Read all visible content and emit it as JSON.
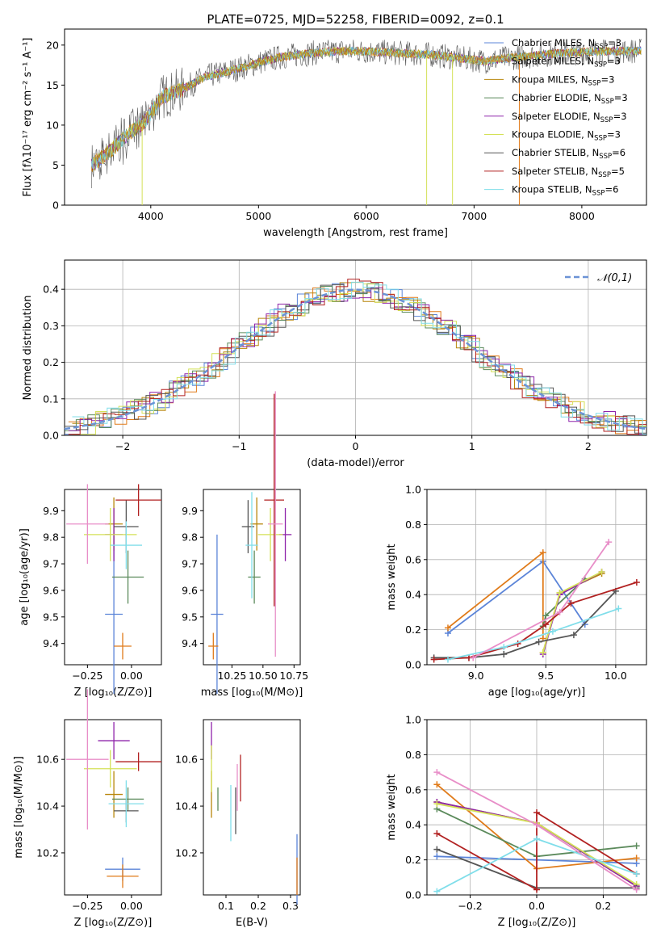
{
  "colors": {
    "blue": "#5b84d8",
    "orange": "#e07b1a",
    "olive": "#b8860b",
    "green": "#5b8a5b",
    "purple": "#8e24aa",
    "yellow": "#d4e157",
    "gray": "#555555",
    "red": "#b22222",
    "cyan": "#80deea",
    "pink": "#e88ec8",
    "dash": "#6b93d6"
  },
  "chart_data": [
    {
      "type": "line",
      "title": "PLATE=0725, MJD=52258, FIBERID=0092, z=0.1",
      "xlabel": "wavelength [Angstrom, rest frame]",
      "ylabel": "Flux [fλ10⁻¹⁷ erg cm⁻² s⁻¹ A⁻¹]",
      "xlim": [
        3200,
        8600
      ],
      "ylim": [
        0,
        22
      ],
      "xticks": [
        "4000",
        "5000",
        "6000",
        "7000",
        "8000"
      ],
      "yticks": [
        "0",
        "5",
        "10",
        "15",
        "20"
      ],
      "legend_position": "upper right",
      "series": [
        {
          "name": "Chabrier MILES, N",
          "sub": "SSP",
          "suffix": "=3",
          "color": "blue"
        },
        {
          "name": "Salpeter MILES, N",
          "sub": "SSP",
          "suffix": "=3",
          "color": "orange"
        },
        {
          "name": "Kroupa MILES, N",
          "sub": "SSP",
          "suffix": "=3",
          "color": "olive"
        },
        {
          "name": "Chabrier ELODIE, N",
          "sub": "SSP",
          "suffix": "=3",
          "color": "green"
        },
        {
          "name": "Salpeter ELODIE, N",
          "sub": "SSP",
          "suffix": "=3",
          "color": "purple"
        },
        {
          "name": "Kroupa ELODIE, N",
          "sub": "SSP",
          "suffix": "=3",
          "color": "yellow"
        },
        {
          "name": "Chabrier STELIB, N",
          "sub": "SSP",
          "suffix": "=6",
          "color": "gray"
        },
        {
          "name": "Salpeter STELIB, N",
          "sub": "SSP",
          "suffix": "=5",
          "color": "red"
        },
        {
          "name": "Kroupa STELIB, N",
          "sub": "SSP",
          "suffix": "=6",
          "color": "cyan"
        }
      ],
      "continuum": [
        [
          3450,
          5.0
        ],
        [
          3600,
          6.5
        ],
        [
          3800,
          9.0
        ],
        [
          3950,
          10.5
        ],
        [
          4100,
          13.5
        ],
        [
          4300,
          14.5
        ],
        [
          4500,
          16.0
        ],
        [
          4800,
          17.0
        ],
        [
          5000,
          17.8
        ],
        [
          5200,
          18.5
        ],
        [
          5500,
          19.0
        ],
        [
          5800,
          19.3
        ],
        [
          6000,
          19.2
        ],
        [
          6300,
          19.0
        ],
        [
          6600,
          18.8
        ],
        [
          6900,
          18.3
        ],
        [
          7100,
          18.0
        ],
        [
          7400,
          18.5
        ],
        [
          7800,
          19.0
        ],
        [
          8200,
          19.2
        ],
        [
          8550,
          19.3
        ]
      ]
    },
    {
      "type": "histogram",
      "xlabel": "(data-model)/error",
      "ylabel": "Normed distribution",
      "xlim": [
        -2.5,
        2.5
      ],
      "ylim": [
        0,
        0.48
      ],
      "xticks": [
        "−2",
        "−1",
        "0",
        "1",
        "2"
      ],
      "yticks": [
        "0.0",
        "0.1",
        "0.2",
        "0.3",
        "0.4"
      ],
      "reference_label": "𝒩(0,1)",
      "series_colors": [
        "blue",
        "orange",
        "olive",
        "green",
        "purple",
        "yellow",
        "gray",
        "red",
        "cyan"
      ]
    },
    {
      "type": "scatter",
      "xlabel": "Z [log₁₀(Z/Z⊙)]",
      "ylabel": "age  [log₁₀(age/yr)]",
      "xlim": [
        -0.38,
        0.17
      ],
      "ylim": [
        9.32,
        9.98
      ],
      "xticks": [
        "−0.25",
        "0.00"
      ],
      "yticks": [
        "9.4",
        "9.5",
        "9.6",
        "9.7",
        "9.8",
        "9.9"
      ],
      "points": [
        {
          "x": -0.1,
          "y": 9.51,
          "xerr": 0.05,
          "yerr": 0.3,
          "color": "blue"
        },
        {
          "x": -0.05,
          "y": 9.39,
          "xerr": 0.05,
          "yerr": 0.05,
          "color": "orange"
        },
        {
          "x": -0.1,
          "y": 9.85,
          "xerr": 0.05,
          "yerr": 0.1,
          "color": "olive"
        },
        {
          "x": -0.02,
          "y": 9.65,
          "xerr": 0.09,
          "yerr": 0.1,
          "color": "green"
        },
        {
          "x": -0.1,
          "y": 9.81,
          "xerr": 0.05,
          "yerr": 0.1,
          "color": "purple"
        },
        {
          "x": -0.12,
          "y": 9.81,
          "xerr": 0.15,
          "yerr": 0.1,
          "color": "yellow"
        },
        {
          "x": -0.03,
          "y": 9.84,
          "xerr": 0.07,
          "yerr": 0.1,
          "color": "gray"
        },
        {
          "x": 0.04,
          "y": 9.94,
          "xerr": 0.13,
          "yerr": 0.06,
          "color": "red"
        },
        {
          "x": -0.03,
          "y": 9.77,
          "xerr": 0.09,
          "yerr": 0.09,
          "color": "cyan"
        },
        {
          "x": -0.25,
          "y": 9.85,
          "xerr": 0.12,
          "yerr": 0.15,
          "color": "pink"
        }
      ]
    },
    {
      "type": "scatter",
      "xlabel": "mass [log₁₀(M/M⊙)]",
      "ylabel": "",
      "xlim": [
        10.02,
        10.8
      ],
      "ylim": [
        9.32,
        9.98
      ],
      "xticks": [
        "10.25",
        "10.50",
        "10.75"
      ],
      "yticks": [
        "9.4",
        "9.5",
        "9.6",
        "9.7",
        "9.8",
        "9.9"
      ],
      "points": [
        {
          "x": 10.13,
          "y": 9.51,
          "xerr": 0.05,
          "yerr": 0.3,
          "color": "blue"
        },
        {
          "x": 10.1,
          "y": 9.39,
          "xerr": 0.04,
          "yerr": 0.05,
          "color": "orange"
        },
        {
          "x": 10.45,
          "y": 9.85,
          "xerr": 0.05,
          "yerr": 0.1,
          "color": "olive"
        },
        {
          "x": 10.43,
          "y": 9.65,
          "xerr": 0.05,
          "yerr": 0.1,
          "color": "green"
        },
        {
          "x": 10.68,
          "y": 9.81,
          "xerr": 0.05,
          "yerr": 0.1,
          "color": "purple"
        },
        {
          "x": 10.56,
          "y": 9.81,
          "xerr": 0.1,
          "yerr": 0.1,
          "color": "yellow"
        },
        {
          "x": 10.38,
          "y": 9.84,
          "xerr": 0.05,
          "yerr": 0.1,
          "color": "gray"
        },
        {
          "x": 10.59,
          "y": 9.94,
          "xerr": 0.08,
          "yerr": 0.4,
          "color": "red"
        },
        {
          "x": 10.41,
          "y": 9.77,
          "xerr": 0.05,
          "yerr": 0.2,
          "color": "cyan"
        },
        {
          "x": 10.6,
          "y": 9.85,
          "xerr": 0.06,
          "yerr": 0.5,
          "color": "pink"
        }
      ]
    },
    {
      "type": "line",
      "xlabel": "age  [log₁₀(age/yr)]",
      "ylabel": "mass weight",
      "xlim": [
        8.65,
        10.22
      ],
      "ylim": [
        0,
        1
      ],
      "xticks": [
        "9.0",
        "9.5",
        "10.0"
      ],
      "yticks": [
        "0.0",
        "0.2",
        "0.4",
        "0.6",
        "0.8",
        "1.0"
      ],
      "series": [
        {
          "color": "blue",
          "x": [
            8.8,
            9.48,
            9.78
          ],
          "y": [
            0.18,
            0.59,
            0.23
          ]
        },
        {
          "color": "orange",
          "x": [
            8.8,
            9.48,
            9.48
          ],
          "y": [
            0.21,
            0.64,
            0.15
          ]
        },
        {
          "color": "olive",
          "x": [
            9.48,
            9.6,
            9.9
          ],
          "y": [
            0.07,
            0.41,
            0.52
          ]
        },
        {
          "color": "green",
          "x": [
            9.48,
            9.5,
            9.78
          ],
          "y": [
            0.22,
            0.28,
            0.49
          ]
        },
        {
          "color": "purple",
          "x": [
            9.48,
            9.6,
            9.9
          ],
          "y": [
            0.06,
            0.4,
            0.53
          ]
        },
        {
          "color": "yellow",
          "x": [
            9.48,
            9.6,
            9.9
          ],
          "y": [
            0.07,
            0.41,
            0.53
          ]
        },
        {
          "color": "gray",
          "x": [
            8.7,
            8.95,
            9.2,
            9.45,
            9.7,
            10.0
          ],
          "y": [
            0.04,
            0.04,
            0.06,
            0.13,
            0.17,
            0.42
          ]
        },
        {
          "color": "red",
          "x": [
            8.7,
            8.95,
            9.3,
            9.5,
            9.68,
            10.15
          ],
          "y": [
            0.03,
            0.04,
            0.12,
            0.23,
            0.35,
            0.47
          ]
        },
        {
          "color": "cyan",
          "x": [
            8.8,
            9.2,
            9.55,
            10.02
          ],
          "y": [
            0.03,
            0.1,
            0.19,
            0.32
          ]
        },
        {
          "color": "pink",
          "x": [
            8.98,
            9.6,
            9.95
          ],
          "y": [
            0.04,
            0.3,
            0.7
          ]
        }
      ]
    },
    {
      "type": "scatter",
      "xlabel": "Z [log₁₀(Z/Z⊙)]",
      "ylabel": "mass [log₁₀(M/M⊙)]",
      "xlim": [
        -0.38,
        0.17
      ],
      "ylim": [
        10.02,
        10.77
      ],
      "xticks": [
        "−0.25",
        "0.00"
      ],
      "yticks": [
        "10.2",
        "10.4",
        "10.6"
      ],
      "points": [
        {
          "x": -0.05,
          "y": 10.13,
          "xerr": 0.1,
          "yerr": 0.05,
          "color": "blue"
        },
        {
          "x": -0.05,
          "y": 10.1,
          "xerr": 0.09,
          "yerr": 0.05,
          "color": "orange"
        },
        {
          "x": -0.1,
          "y": 10.45,
          "xerr": 0.05,
          "yerr": 0.1,
          "color": "olive"
        },
        {
          "x": -0.02,
          "y": 10.43,
          "xerr": 0.09,
          "yerr": 0.05,
          "color": "green"
        },
        {
          "x": -0.1,
          "y": 10.68,
          "xerr": 0.09,
          "yerr": 0.08,
          "color": "purple"
        },
        {
          "x": -0.12,
          "y": 10.56,
          "xerr": 0.15,
          "yerr": 0.08,
          "color": "yellow"
        },
        {
          "x": -0.03,
          "y": 10.38,
          "xerr": 0.07,
          "yerr": 0.05,
          "color": "gray"
        },
        {
          "x": 0.04,
          "y": 10.59,
          "xerr": 0.13,
          "yerr": 0.04,
          "color": "red"
        },
        {
          "x": -0.03,
          "y": 10.41,
          "xerr": 0.1,
          "yerr": 0.1,
          "color": "cyan"
        },
        {
          "x": -0.25,
          "y": 10.6,
          "xerr": 0.12,
          "yerr": 0.3,
          "color": "pink"
        }
      ]
    },
    {
      "type": "scatter",
      "xlabel": "E(B-V)",
      "ylabel": "",
      "xlim": [
        0.03,
        0.33
      ],
      "ylim": [
        10.02,
        10.77
      ],
      "xticks": [
        "0.1",
        "0.2",
        "0.3"
      ],
      "yticks": [
        "10.2",
        "10.4",
        "10.6"
      ],
      "points": [
        {
          "x": 0.32,
          "y": 10.13,
          "yerr": 0.15,
          "color": "blue"
        },
        {
          "x": 0.32,
          "y": 10.1,
          "yerr": 0.08,
          "color": "orange"
        },
        {
          "x": 0.055,
          "y": 10.45,
          "yerr": 0.1,
          "color": "olive"
        },
        {
          "x": 0.075,
          "y": 10.43,
          "yerr": 0.05,
          "color": "green"
        },
        {
          "x": 0.055,
          "y": 10.68,
          "yerr": 0.08,
          "color": "purple"
        },
        {
          "x": 0.055,
          "y": 10.56,
          "yerr": 0.1,
          "color": "yellow"
        },
        {
          "x": 0.13,
          "y": 10.38,
          "yerr": 0.1,
          "color": "gray"
        },
        {
          "x": 0.145,
          "y": 10.52,
          "yerr": 0.1,
          "color": "red"
        },
        {
          "x": 0.115,
          "y": 10.37,
          "yerr": 0.12,
          "color": "cyan"
        },
        {
          "x": 0.135,
          "y": 10.48,
          "yerr": 0.1,
          "color": "pink"
        }
      ]
    },
    {
      "type": "line",
      "xlabel": "Z [log₁₀(Z/Z⊙)]",
      "ylabel": "mass weight",
      "xlim": [
        -0.33,
        0.33
      ],
      "ylim": [
        0,
        1
      ],
      "xticks": [
        "−0.2",
        "0.0",
        "0.2"
      ],
      "yticks": [
        "0.0",
        "0.2",
        "0.4",
        "0.6",
        "0.8",
        "1.0"
      ],
      "series": [
        {
          "color": "blue",
          "x": [
            -0.3,
            0.0,
            0.3
          ],
          "y": [
            0.22,
            0.2,
            0.18
          ]
        },
        {
          "color": "orange",
          "x": [
            -0.3,
            0.0,
            0.3
          ],
          "y": [
            0.63,
            0.15,
            0.21
          ]
        },
        {
          "color": "olive",
          "x": [
            -0.3,
            0.0,
            0.3
          ],
          "y": [
            0.53,
            0.41,
            0.05
          ]
        },
        {
          "color": "green",
          "x": [
            -0.3,
            0.0,
            0.3
          ],
          "y": [
            0.49,
            0.22,
            0.28
          ]
        },
        {
          "color": "purple",
          "x": [
            -0.3,
            0.0,
            0.3
          ],
          "y": [
            0.53,
            0.41,
            0.05
          ]
        },
        {
          "color": "yellow",
          "x": [
            -0.3,
            0.0,
            0.3
          ],
          "y": [
            0.52,
            0.41,
            0.06
          ]
        },
        {
          "color": "gray",
          "x": [
            -0.3,
            0.0,
            0.3
          ],
          "y": [
            0.26,
            0.04,
            0.04
          ]
        },
        {
          "color": "red",
          "x": [
            -0.3,
            0.0,
            0.0,
            0.3
          ],
          "y": [
            0.35,
            0.03,
            0.47,
            0.12
          ]
        },
        {
          "color": "cyan",
          "x": [
            -0.3,
            0.0,
            0.3
          ],
          "y": [
            0.02,
            0.32,
            0.12
          ]
        },
        {
          "color": "pink",
          "x": [
            -0.3,
            0.0,
            0.3
          ],
          "y": [
            0.7,
            0.4,
            0.03
          ]
        }
      ]
    }
  ]
}
